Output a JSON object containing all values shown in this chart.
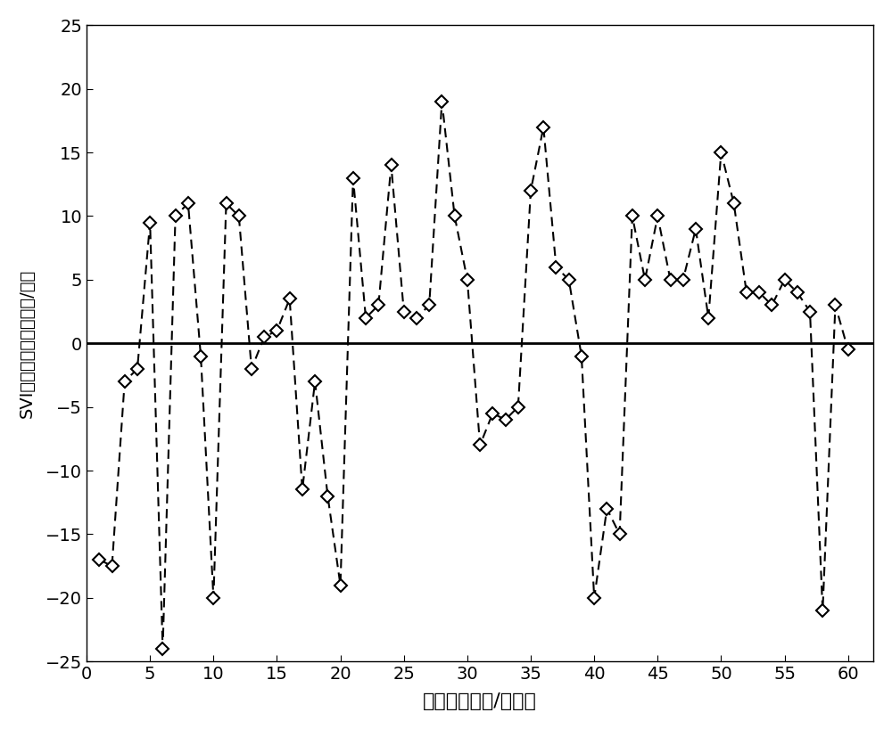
{
  "x": [
    1,
    2,
    3,
    4,
    5,
    6,
    7,
    8,
    9,
    10,
    11,
    12,
    13,
    14,
    15,
    16,
    17,
    18,
    19,
    20,
    21,
    22,
    23,
    24,
    25,
    26,
    27,
    28,
    29,
    30,
    31,
    32,
    33,
    34,
    35,
    36,
    37,
    38,
    39,
    40,
    41,
    42,
    43,
    44,
    45,
    46,
    47,
    48,
    49,
    50,
    51,
    52,
    53,
    54,
    55,
    56,
    57,
    58,
    59,
    60
  ],
  "y": [
    -17,
    -17.5,
    -3,
    -2,
    9.5,
    -24,
    10,
    11,
    -1,
    -20,
    11,
    10,
    -2,
    0.5,
    1,
    3.5,
    -11.5,
    -3,
    -12,
    -19,
    13,
    2,
    3,
    14,
    2.5,
    2,
    3,
    19,
    10,
    5,
    -8,
    -5.5,
    -6,
    -5,
    12,
    17,
    6,
    5,
    -1,
    -20,
    -13,
    -15,
    10,
    5,
    10,
    5,
    5,
    9,
    2,
    15,
    11,
    4,
    4,
    3,
    5,
    4,
    2.5,
    -21,
    3,
    -0.5
  ],
  "xlabel": "样本序号（天/样本）",
  "ylabel": "SVI拟合结果误差（毫升/克）",
  "xlim": [
    0,
    62
  ],
  "ylim": [
    -25,
    25
  ],
  "xticks": [
    0,
    5,
    10,
    15,
    20,
    25,
    30,
    35,
    40,
    45,
    50,
    55,
    60
  ],
  "yticks": [
    -25,
    -20,
    -15,
    -10,
    -5,
    0,
    5,
    10,
    15,
    20,
    25
  ],
  "line_color": "#000000",
  "marker_color": "#000000",
  "background_color": "#ffffff",
  "zero_line_color": "#000000",
  "xlabel_fontsize": 16,
  "ylabel_fontsize": 14,
  "tick_fontsize": 14
}
